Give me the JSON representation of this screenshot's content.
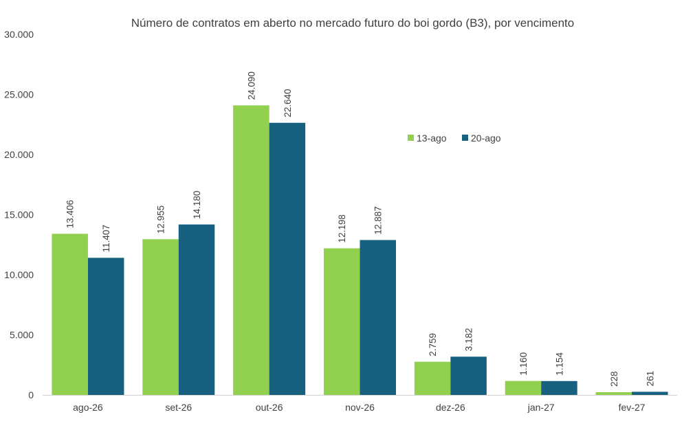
{
  "chart_data": {
    "type": "bar",
    "title": "Número de contratos em aberto no mercado futuro do boi gordo (B3), por vencimento",
    "xlabel": "",
    "ylabel": "",
    "categories": [
      "ago-26",
      "set-26",
      "out-26",
      "nov-26",
      "dez-26",
      "jan-27",
      "fev-27"
    ],
    "series": [
      {
        "name": "13-ago",
        "values": [
          13406,
          12955,
          24090,
          12198,
          2759,
          1160,
          228
        ],
        "value_labels": [
          "13.406",
          "12.955",
          "24.090",
          "12.198",
          "2.759",
          "1.160",
          "228"
        ],
        "color": "#92d050"
      },
      {
        "name": "20-ago",
        "values": [
          11407,
          14180,
          22640,
          12887,
          3182,
          1154,
          261
        ],
        "value_labels": [
          "11.407",
          "14.180",
          "22.640",
          "12.887",
          "3.182",
          "1.154",
          "261"
        ],
        "color": "#17607f"
      }
    ],
    "ylim": [
      0,
      30000
    ],
    "y_ticks": [
      0,
      5000,
      10000,
      15000,
      20000,
      25000,
      30000
    ],
    "y_tick_labels": [
      "0",
      "5.000",
      "10.000",
      "15.000",
      "20.000",
      "25.000",
      "30.000"
    ],
    "grid": false,
    "legend_position": "top-right"
  }
}
